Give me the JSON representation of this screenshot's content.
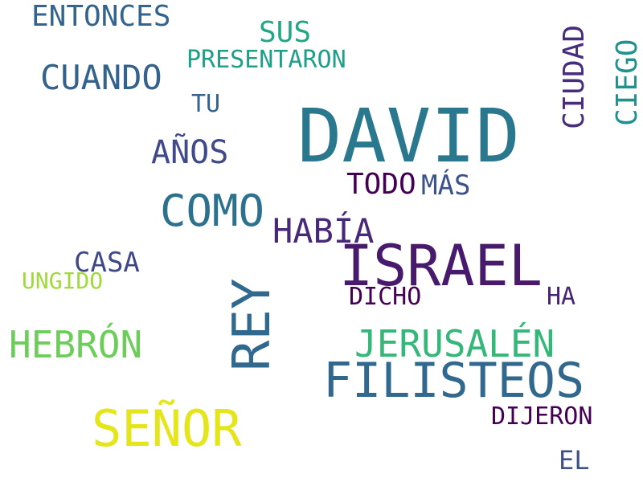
{
  "words": [
    {
      "text": "DAVID",
      "color": "#2a788e"
    },
    {
      "text": "ISRAEL",
      "color": "#481a6c"
    },
    {
      "text": "FILISTEOS",
      "color": "#31688e"
    },
    {
      "text": "REY",
      "color": "#31688e"
    },
    {
      "text": "SEÑOR",
      "color": "#e4e51b"
    },
    {
      "text": "COMO",
      "color": "#2c728e"
    },
    {
      "text": "JERUSALÉN",
      "color": "#35b779"
    },
    {
      "text": "HEBRÓN",
      "color": "#6ccd5a"
    },
    {
      "text": "CUANDO",
      "color": "#33638d"
    },
    {
      "text": "HABÍA",
      "color": "#482878"
    },
    {
      "text": "AÑOS",
      "color": "#3e4a89"
    },
    {
      "text": "CIUDAD",
      "color": "#472d7b"
    },
    {
      "text": "CIEGO",
      "color": "#21918c"
    },
    {
      "text": "ENTONCES",
      "color": "#32648e"
    },
    {
      "text": "SUS",
      "color": "#22a785"
    },
    {
      "text": "PRESENTARON",
      "color": "#1f9e89"
    },
    {
      "text": "TODO",
      "color": "#440154"
    },
    {
      "text": "MÁS",
      "color": "#3b528b"
    },
    {
      "text": "CASA",
      "color": "#3f4788"
    },
    {
      "text": "UNGIDO",
      "color": "#a0da39"
    },
    {
      "text": "DICHO",
      "color": "#440154"
    },
    {
      "text": "HA",
      "color": "#482475"
    },
    {
      "text": "DIJERON",
      "color": "#440154"
    },
    {
      "text": "TU",
      "color": "#33638d"
    },
    {
      "text": "EL",
      "color": "#3b528b"
    }
  ]
}
